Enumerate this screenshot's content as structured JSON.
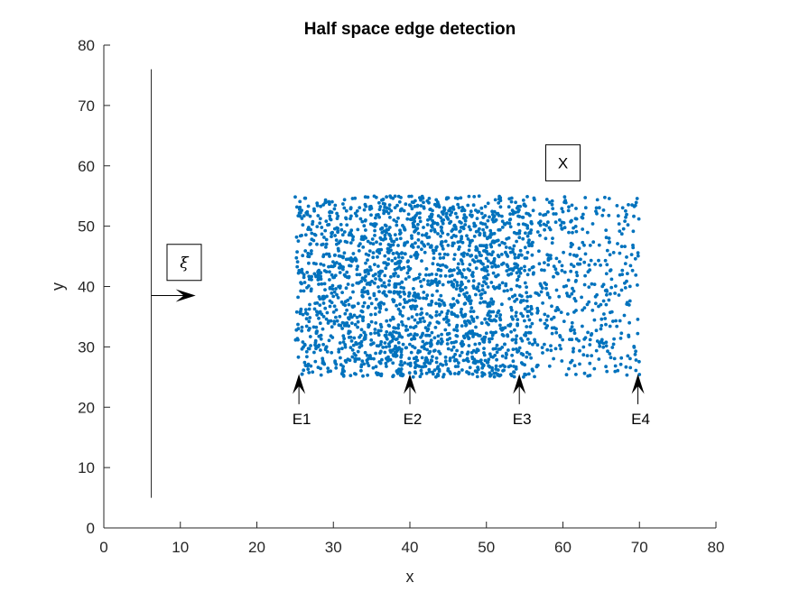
{
  "chart_data": {
    "type": "scatter",
    "title": "Half space edge detection",
    "xlabel": "x",
    "ylabel": "y",
    "xlim": [
      0,
      80
    ],
    "ylim": [
      0,
      80
    ],
    "xticks": [
      0,
      10,
      20,
      30,
      40,
      50,
      60,
      70,
      80
    ],
    "yticks": [
      0,
      10,
      20,
      30,
      40,
      50,
      60,
      70,
      80
    ],
    "grid": false,
    "point_color": "#0072BD",
    "scatter_region": {
      "x": [
        25,
        70
      ],
      "y": [
        25,
        55
      ],
      "approx_count": 2500
    },
    "density_profile": [
      {
        "x_from": 25,
        "x_to": 36,
        "relative_density": 0.8
      },
      {
        "x_from": 36,
        "x_to": 52,
        "relative_density": 1.0
      },
      {
        "x_from": 52,
        "x_to": 56,
        "relative_density": 0.85
      },
      {
        "x_from": 56,
        "x_to": 70,
        "relative_density": 0.4
      }
    ],
    "boundary_line": {
      "x": 6.2,
      "y_from": 5,
      "y_to": 76
    },
    "normal_arrow": {
      "from": [
        6.2,
        38.5
      ],
      "to": [
        12,
        38.5
      ]
    },
    "annotations": [
      {
        "text": "ξ",
        "boxed": true,
        "x": 10.5,
        "y": 44
      },
      {
        "text": "X",
        "boxed": true,
        "x": 60,
        "y": 60.5
      }
    ],
    "edge_markers": [
      {
        "label": "E1",
        "x": 25.5,
        "tip_y": 25.5,
        "tail_y": 20.5
      },
      {
        "label": "E2",
        "x": 40,
        "tip_y": 25.5,
        "tail_y": 20.5
      },
      {
        "label": "E3",
        "x": 54.3,
        "tip_y": 25.5,
        "tail_y": 20.5
      },
      {
        "label": "E4",
        "x": 69.8,
        "tip_y": 25.5,
        "tail_y": 20.5
      }
    ]
  }
}
